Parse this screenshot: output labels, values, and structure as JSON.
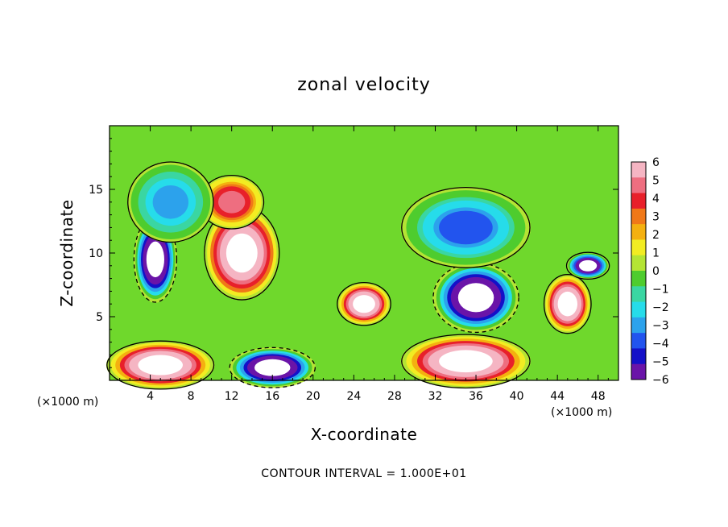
{
  "chart_data": {
    "type": "heatmap",
    "title": "zonal velocity",
    "xlabel": "X-coordinate",
    "ylabel": "Z-coordinate",
    "x_unit_label": "(×1000 m)",
    "z_unit_label": "(×1000 m)",
    "xlim": [
      0,
      50
    ],
    "ylim": [
      0,
      20
    ],
    "x_ticks": [
      4,
      8,
      12,
      16,
      20,
      24,
      28,
      32,
      36,
      40,
      44,
      48
    ],
    "y_ticks": [
      5,
      10,
      15
    ],
    "footer": "CONTOUR INTERVAL = 1.000E+01",
    "colorbar": {
      "ticks": [
        6,
        5,
        4,
        3,
        2,
        1,
        0,
        -1,
        -2,
        -3,
        -4,
        -5,
        -6
      ],
      "colors": [
        "#f5b5c3",
        "#ee6e80",
        "#e8202a",
        "#f07818",
        "#f4b010",
        "#f2ec22",
        "#b4e434",
        "#4ecc2e",
        "#3ad6a2",
        "#26dcea",
        "#2ca2ec",
        "#2254ee",
        "#1410c8",
        "#6a14a8"
      ]
    },
    "features": [
      {
        "x": 4.5,
        "z": 9.5,
        "rx": 2.0,
        "rz": 3.2,
        "value": -9
      },
      {
        "x": 13,
        "z": 10,
        "rx": 3.5,
        "rz": 3.5,
        "value": 9
      },
      {
        "x": 25,
        "z": 6,
        "rx": 2.5,
        "rz": 1.6,
        "value": 8
      },
      {
        "x": 36,
        "z": 6.5,
        "rx": 4.0,
        "rz": 2.6,
        "value": -9
      },
      {
        "x": 45,
        "z": 6,
        "rx": 2.2,
        "rz": 2.2,
        "value": 8
      },
      {
        "x": 5,
        "z": 1.2,
        "rx": 5.0,
        "rz": 1.8,
        "value": 8
      },
      {
        "x": 16,
        "z": 1.0,
        "rx": 4.0,
        "rz": 1.5,
        "value": -9
      },
      {
        "x": 35,
        "z": 1.5,
        "rx": 6.0,
        "rz": 2.0,
        "value": 8
      },
      {
        "x": 47,
        "z": 9,
        "rx": 2.0,
        "rz": 1.0,
        "value": -8
      },
      {
        "x": 12,
        "z": 14,
        "rx": 3.0,
        "rz": 2.0,
        "value": 5
      },
      {
        "x": 6,
        "z": 14,
        "rx": 4.0,
        "rz": 3.0,
        "value": -3
      },
      {
        "x": 35,
        "z": 12,
        "rx": 6.0,
        "rz": 3.0,
        "value": -4
      }
    ]
  }
}
